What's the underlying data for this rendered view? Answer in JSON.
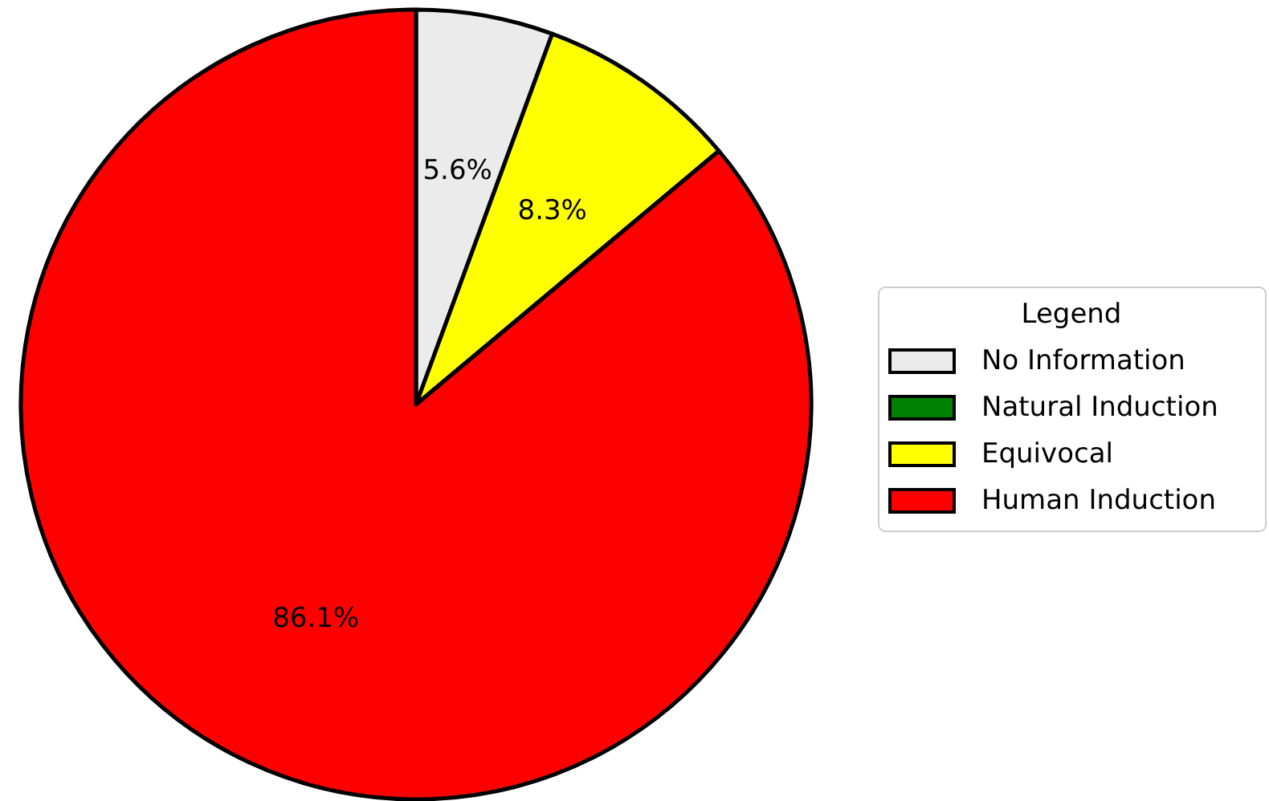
{
  "chart_data": {
    "type": "pie",
    "categories": [
      "No Information",
      "Natural Induction",
      "Equivocal",
      "Human Induction"
    ],
    "values": [
      5.6,
      0,
      8.3,
      86.1
    ],
    "colors": [
      "#ebebeb",
      "#008000",
      "#ffff00",
      "#ff0000"
    ],
    "value_labels": [
      "5.6%",
      null,
      "8.3%",
      "86.1%"
    ],
    "legend": "right",
    "legend_title": "Legend"
  }
}
